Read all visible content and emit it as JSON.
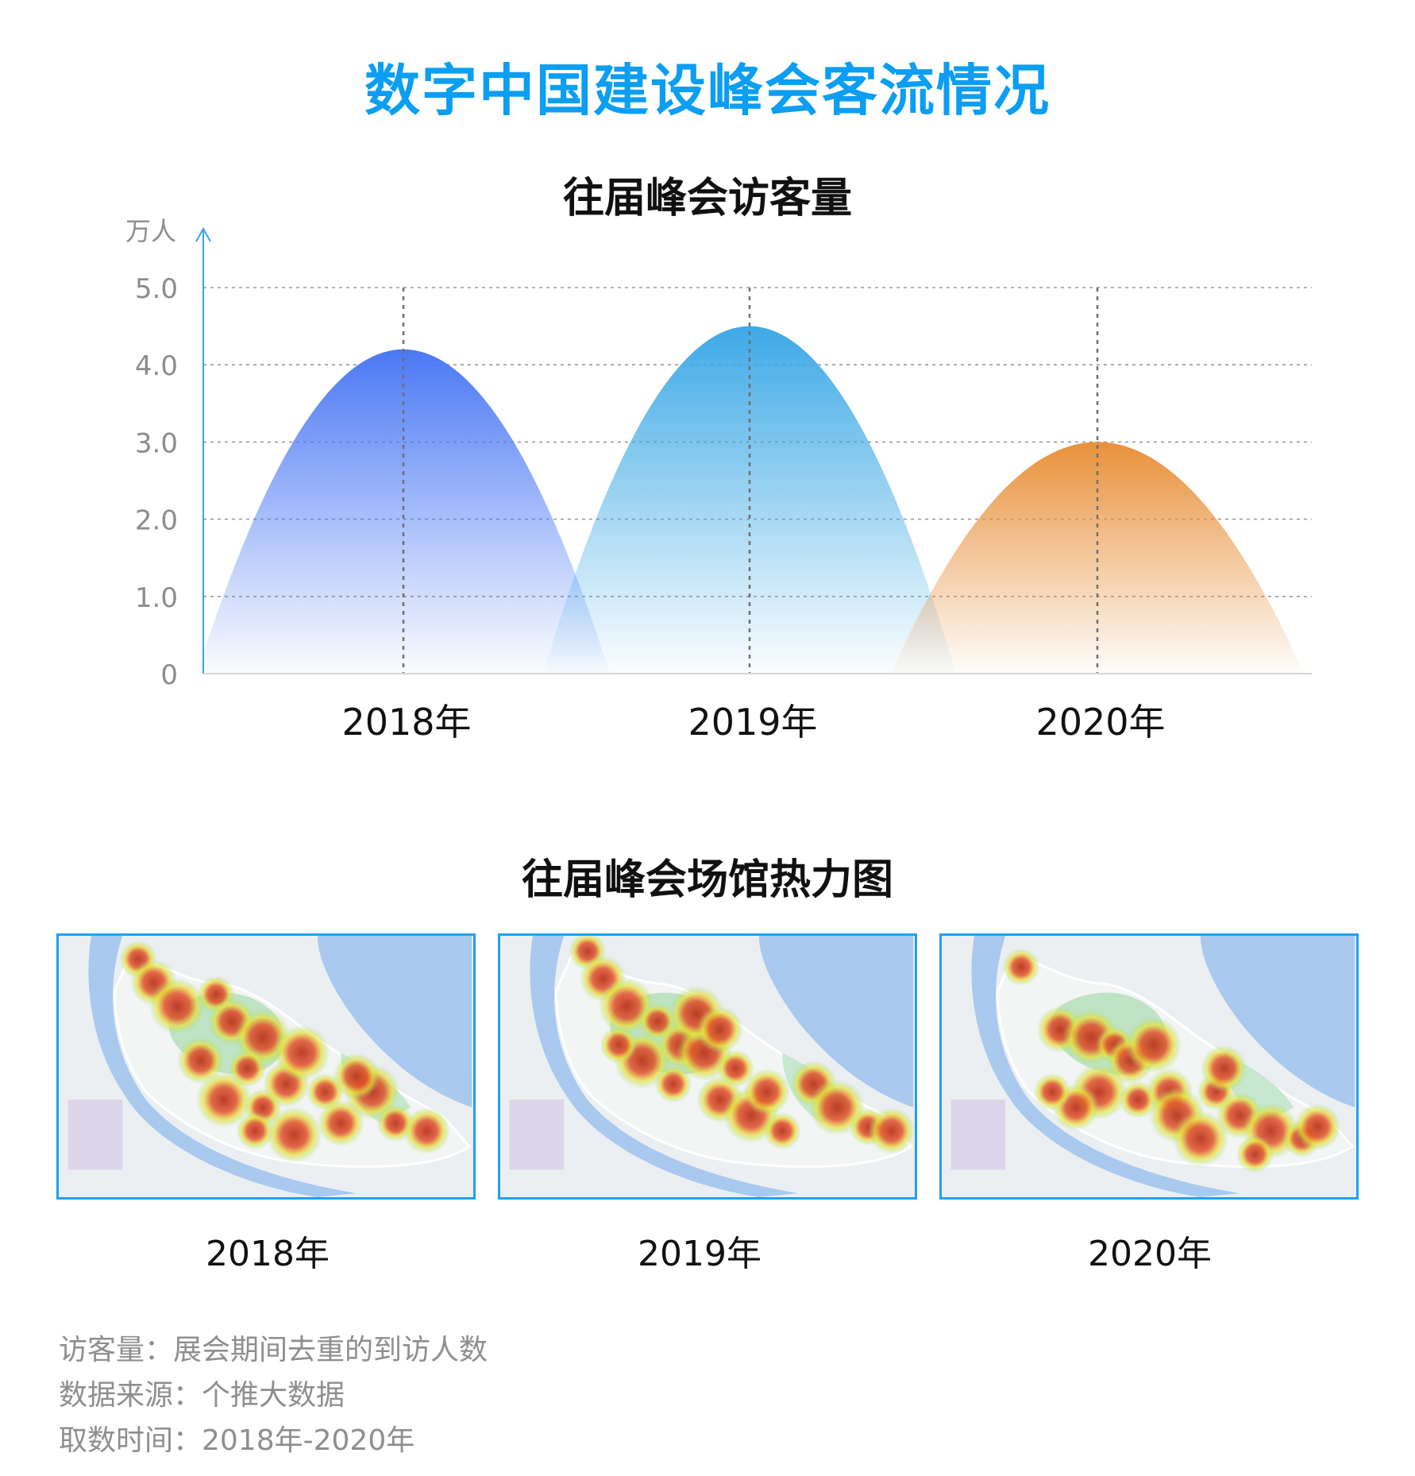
{
  "main_title": "数字中国建设峰会客流情况",
  "chart_data": {
    "type": "area",
    "title": "往届峰会访客量",
    "unit_label": "万人",
    "y_ticks": [
      "0",
      "1.0",
      "2.0",
      "3.0",
      "4.0",
      "5.0"
    ],
    "ylim": [
      0,
      5
    ],
    "grid": true,
    "categories": [
      "2018年",
      "2019年",
      "2020年"
    ],
    "values": [
      4.2,
      4.5,
      3.0
    ],
    "colors": [
      "#4a78f5",
      "#3da9e6",
      "#e8913a"
    ]
  },
  "heatmap_section": {
    "title": "往届峰会场馆热力图",
    "panels": [
      {
        "year_label": "2018年"
      },
      {
        "year_label": "2019年"
      },
      {
        "year_label": "2020年"
      }
    ]
  },
  "footnotes": [
    "访客量：展会期间去重的到访人数",
    "数据来源：个推大数据",
    "取数时间：2018年-2020年"
  ]
}
